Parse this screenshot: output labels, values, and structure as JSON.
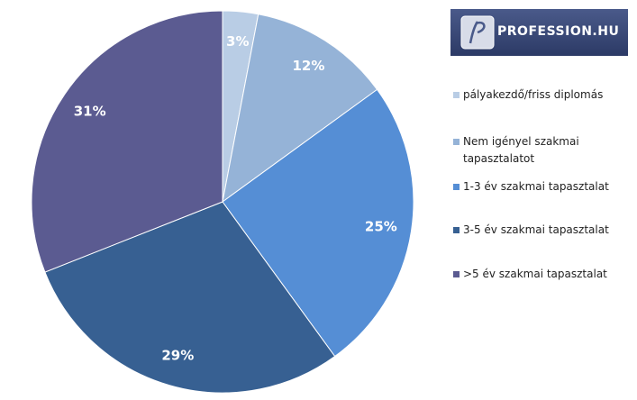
{
  "chart_data": {
    "type": "pie",
    "brand": "PROFESSION.HU",
    "categories": [
      "pályakezdő/friss diplomás",
      "Nem igényel szakmai tapasztalatot",
      "1-3 év szakmai tapasztalat",
      "3-5 év szakmai tapasztalat",
      ">5 év szakmai tapasztalat"
    ],
    "values": [
      3,
      12,
      25,
      29,
      31
    ],
    "value_labels": [
      "3%",
      "12%",
      "25%",
      "29%",
      "31%"
    ],
    "colors": [
      "#b9cde5",
      "#95b3d7",
      "#558ed5",
      "#376092",
      "#5b5b91"
    ]
  }
}
